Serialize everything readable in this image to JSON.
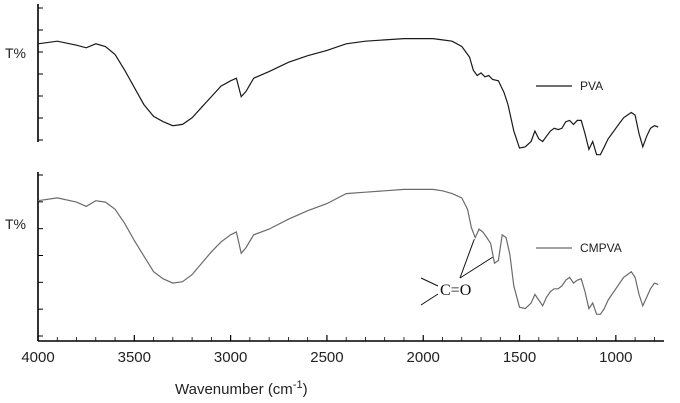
{
  "chart_data": {
    "type": "line",
    "title": "",
    "xlabel": "Wavenumber (cm",
    "xlabel_sup": "-1",
    "xlabel_close": ")",
    "xlim": [
      4000,
      750
    ],
    "x_reversed": true,
    "xticks": [
      4000,
      3500,
      3000,
      2500,
      2000,
      1500,
      1000
    ],
    "panels": [
      {
        "ylabel": "T%",
        "legend": "PVA",
        "color": "#1a1a1a",
        "ylim": [
          0,
          100
        ],
        "points": [
          [
            4000,
            88
          ],
          [
            3900,
            90
          ],
          [
            3800,
            87
          ],
          [
            3750,
            85
          ],
          [
            3700,
            88
          ],
          [
            3650,
            86
          ],
          [
            3600,
            80
          ],
          [
            3550,
            68
          ],
          [
            3500,
            55
          ],
          [
            3450,
            42
          ],
          [
            3400,
            33
          ],
          [
            3350,
            29
          ],
          [
            3300,
            26
          ],
          [
            3250,
            27
          ],
          [
            3200,
            32
          ],
          [
            3150,
            40
          ],
          [
            3100,
            48
          ],
          [
            3050,
            56
          ],
          [
            3000,
            60
          ],
          [
            2970,
            62
          ],
          [
            2945,
            48
          ],
          [
            2920,
            52
          ],
          [
            2880,
            62
          ],
          [
            2800,
            67
          ],
          [
            2700,
            74
          ],
          [
            2600,
            79
          ],
          [
            2500,
            83
          ],
          [
            2400,
            88
          ],
          [
            2300,
            90
          ],
          [
            2200,
            91
          ],
          [
            2100,
            92
          ],
          [
            2000,
            92
          ],
          [
            1950,
            92
          ],
          [
            1900,
            91
          ],
          [
            1850,
            90
          ],
          [
            1800,
            86
          ],
          [
            1760,
            78
          ],
          [
            1740,
            68
          ],
          [
            1720,
            64
          ],
          [
            1700,
            66
          ],
          [
            1680,
            63
          ],
          [
            1660,
            64
          ],
          [
            1640,
            61
          ],
          [
            1610,
            60
          ],
          [
            1580,
            51
          ],
          [
            1560,
            42
          ],
          [
            1530,
            22
          ],
          [
            1500,
            9
          ],
          [
            1470,
            10
          ],
          [
            1440,
            14
          ],
          [
            1420,
            22
          ],
          [
            1400,
            16
          ],
          [
            1380,
            14
          ],
          [
            1360,
            18
          ],
          [
            1340,
            22
          ],
          [
            1320,
            24
          ],
          [
            1300,
            23
          ],
          [
            1280,
            24
          ],
          [
            1260,
            29
          ],
          [
            1240,
            30
          ],
          [
            1220,
            27
          ],
          [
            1200,
            30
          ],
          [
            1180,
            30
          ],
          [
            1160,
            20
          ],
          [
            1140,
            8
          ],
          [
            1120,
            14
          ],
          [
            1100,
            4
          ],
          [
            1080,
            4
          ],
          [
            1060,
            10
          ],
          [
            1040,
            16
          ],
          [
            1020,
            20
          ],
          [
            1000,
            24
          ],
          [
            980,
            28
          ],
          [
            960,
            32
          ],
          [
            940,
            34
          ],
          [
            920,
            36
          ],
          [
            900,
            34
          ],
          [
            880,
            20
          ],
          [
            860,
            10
          ],
          [
            840,
            18
          ],
          [
            820,
            24
          ],
          [
            800,
            26
          ],
          [
            780,
            25
          ]
        ]
      },
      {
        "ylabel": "T%",
        "legend": "CMPVA",
        "color": "#6b6b6b",
        "ylim": [
          0,
          100
        ],
        "points": [
          [
            4000,
            84
          ],
          [
            3900,
            86
          ],
          [
            3800,
            83
          ],
          [
            3750,
            80
          ],
          [
            3700,
            84
          ],
          [
            3650,
            83
          ],
          [
            3600,
            78
          ],
          [
            3550,
            68
          ],
          [
            3500,
            56
          ],
          [
            3450,
            45
          ],
          [
            3400,
            34
          ],
          [
            3350,
            29
          ],
          [
            3300,
            26
          ],
          [
            3250,
            27
          ],
          [
            3200,
            32
          ],
          [
            3150,
            40
          ],
          [
            3100,
            48
          ],
          [
            3050,
            55
          ],
          [
            3000,
            60
          ],
          [
            2970,
            62
          ],
          [
            2945,
            47
          ],
          [
            2920,
            51
          ],
          [
            2880,
            60
          ],
          [
            2800,
            64
          ],
          [
            2700,
            71
          ],
          [
            2600,
            77
          ],
          [
            2500,
            82
          ],
          [
            2400,
            89
          ],
          [
            2300,
            90
          ],
          [
            2200,
            91
          ],
          [
            2100,
            92
          ],
          [
            2000,
            92
          ],
          [
            1950,
            92
          ],
          [
            1900,
            91
          ],
          [
            1850,
            89
          ],
          [
            1800,
            86
          ],
          [
            1770,
            78
          ],
          [
            1750,
            65
          ],
          [
            1730,
            58
          ],
          [
            1710,
            64
          ],
          [
            1690,
            62
          ],
          [
            1670,
            58
          ],
          [
            1650,
            54
          ],
          [
            1630,
            40
          ],
          [
            1610,
            42
          ],
          [
            1590,
            60
          ],
          [
            1570,
            58
          ],
          [
            1550,
            46
          ],
          [
            1530,
            24
          ],
          [
            1500,
            9
          ],
          [
            1470,
            8
          ],
          [
            1440,
            12
          ],
          [
            1420,
            18
          ],
          [
            1400,
            14
          ],
          [
            1380,
            10
          ],
          [
            1360,
            16
          ],
          [
            1340,
            20
          ],
          [
            1320,
            22
          ],
          [
            1300,
            22
          ],
          [
            1280,
            24
          ],
          [
            1260,
            28
          ],
          [
            1240,
            30
          ],
          [
            1220,
            26
          ],
          [
            1200,
            28
          ],
          [
            1180,
            29
          ],
          [
            1160,
            20
          ],
          [
            1140,
            8
          ],
          [
            1120,
            12
          ],
          [
            1100,
            4
          ],
          [
            1080,
            4
          ],
          [
            1060,
            8
          ],
          [
            1040,
            14
          ],
          [
            1020,
            18
          ],
          [
            1000,
            22
          ],
          [
            980,
            26
          ],
          [
            960,
            30
          ],
          [
            940,
            32
          ],
          [
            920,
            34
          ],
          [
            900,
            30
          ],
          [
            880,
            18
          ],
          [
            860,
            10
          ],
          [
            840,
            16
          ],
          [
            820,
            22
          ],
          [
            800,
            26
          ],
          [
            780,
            25
          ]
        ]
      }
    ],
    "annotations": [
      {
        "text": "C=O",
        "arrow_targets_wavenumber": [
          1735,
          1640
        ]
      }
    ]
  }
}
